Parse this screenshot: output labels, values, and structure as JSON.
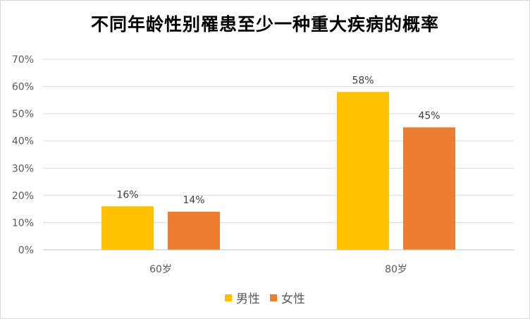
{
  "chart_data": {
    "type": "bar",
    "title": "不同年龄性别罹患至少一种重大疾病的概率",
    "xlabel": "",
    "ylabel": "",
    "categories": [
      "60岁",
      "80岁"
    ],
    "series": [
      {
        "name": "男性",
        "values": [
          0.16,
          0.58
        ],
        "labels": [
          "16%",
          "58%"
        ],
        "color": "#FFC000"
      },
      {
        "name": "女性",
        "values": [
          0.14,
          0.45
        ],
        "labels": [
          "14%",
          "45%"
        ],
        "color": "#ED7D31"
      }
    ],
    "ylim": [
      0,
      0.7
    ],
    "yticks": [
      0,
      0.1,
      0.2,
      0.3,
      0.4,
      0.5,
      0.6,
      0.7
    ],
    "ytick_labels": [
      "0%",
      "10%",
      "20%",
      "30%",
      "40%",
      "50%",
      "60%",
      "70%"
    ],
    "grid": true,
    "legend_position": "bottom"
  }
}
